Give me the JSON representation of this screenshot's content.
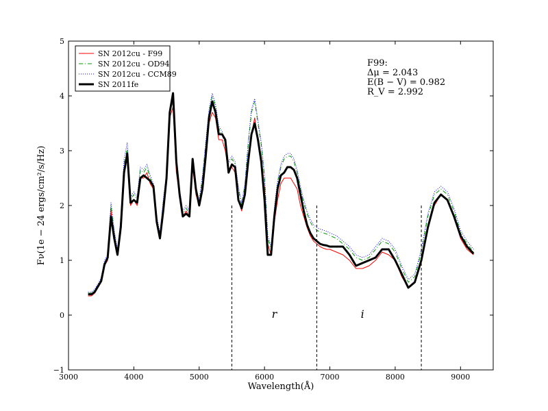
{
  "chart_data": {
    "type": "line",
    "xlabel": "Wavelength(Å)",
    "ylabel": "Fν(1e − 24 ergs/cm²/s/Hz)",
    "xlim": [
      3000,
      9500
    ],
    "ylim": [
      -1,
      5
    ],
    "x_ticks": [
      "3000",
      "4000",
      "5000",
      "6000",
      "7000",
      "8000",
      "9000"
    ],
    "y_ticks": [
      "−1",
      "0",
      "1",
      "2",
      "3",
      "4",
      "5"
    ],
    "grid": false,
    "legend_placement": "top-left",
    "annotation_lines": [
      "F99:",
      "Δμ = 2.043",
      "E(B − V) = 0.982",
      "R_V = 2.992"
    ],
    "band_lines_x": [
      5500,
      6800,
      8400
    ],
    "band_lines_ylim": [
      -1,
      2
    ],
    "band_labels": [
      {
        "text": "r",
        "x": 6150,
        "y": 0.0
      },
      {
        "text": "i",
        "x": 7500,
        "y": 0.0
      }
    ],
    "x": [
      3300,
      3350,
      3400,
      3450,
      3500,
      3550,
      3600,
      3650,
      3700,
      3750,
      3800,
      3850,
      3900,
      3950,
      4000,
      4050,
      4100,
      4150,
      4200,
      4250,
      4300,
      4350,
      4400,
      4450,
      4500,
      4550,
      4600,
      4650,
      4700,
      4750,
      4800,
      4850,
      4900,
      4950,
      5000,
      5050,
      5100,
      5150,
      5200,
      5250,
      5300,
      5350,
      5400,
      5450,
      5500,
      5550,
      5600,
      5650,
      5700,
      5750,
      5800,
      5850,
      5900,
      5950,
      6000,
      6050,
      6100,
      6150,
      6200,
      6250,
      6300,
      6350,
      6400,
      6450,
      6500,
      6550,
      6600,
      6650,
      6700,
      6750,
      6800,
      6850,
      6900,
      6950,
      7000,
      7100,
      7200,
      7300,
      7400,
      7500,
      7600,
      7700,
      7800,
      7900,
      8000,
      8100,
      8200,
      8300,
      8400,
      8500,
      8600,
      8700,
      8800,
      8900,
      9000,
      9100,
      9200
    ],
    "series": [
      {
        "name": "SN 2012cu - F99",
        "color": "#ff0000",
        "style": "solid",
        "width": 1,
        "values": [
          0.35,
          0.35,
          0.4,
          0.5,
          0.6,
          0.9,
          1.0,
          1.9,
          1.4,
          1.1,
          1.6,
          2.6,
          2.9,
          2.0,
          2.1,
          2.0,
          2.5,
          2.5,
          2.6,
          2.4,
          2.3,
          1.7,
          1.4,
          2.0,
          2.5,
          3.6,
          3.8,
          2.6,
          2.2,
          1.8,
          1.9,
          1.8,
          2.7,
          2.2,
          2.0,
          2.4,
          3.0,
          3.5,
          3.7,
          3.6,
          3.2,
          3.2,
          3.0,
          2.6,
          2.7,
          2.6,
          2.1,
          1.9,
          2.2,
          2.8,
          3.3,
          3.6,
          3.2,
          2.9,
          2.3,
          1.3,
          1.1,
          1.7,
          2.1,
          2.4,
          2.5,
          2.5,
          2.5,
          2.4,
          2.3,
          2.0,
          1.8,
          1.6,
          1.45,
          1.35,
          1.3,
          1.25,
          1.22,
          1.2,
          1.2,
          1.15,
          1.1,
          1.0,
          0.85,
          0.85,
          0.9,
          1.0,
          1.15,
          1.1,
          1.0,
          0.7,
          0.5,
          0.6,
          1.0,
          1.6,
          2.0,
          2.2,
          2.1,
          1.8,
          1.4,
          1.2,
          1.1
        ]
      },
      {
        "name": "SN 2012cu - OD94",
        "color": "#009900",
        "style": "dashdot",
        "width": 1,
        "values": [
          0.4,
          0.4,
          0.45,
          0.55,
          0.65,
          0.95,
          1.05,
          2.0,
          1.5,
          1.15,
          1.7,
          2.75,
          3.05,
          2.1,
          2.2,
          2.1,
          2.65,
          2.6,
          2.7,
          2.5,
          2.35,
          1.75,
          1.45,
          2.05,
          2.55,
          3.7,
          3.9,
          2.7,
          2.25,
          1.85,
          1.95,
          1.85,
          2.8,
          2.25,
          2.05,
          2.5,
          3.1,
          3.7,
          4.0,
          3.8,
          3.4,
          3.3,
          3.1,
          2.75,
          2.85,
          2.75,
          2.3,
          2.0,
          2.35,
          3.1,
          3.7,
          3.9,
          3.5,
          3.1,
          2.5,
          1.4,
          1.2,
          1.9,
          2.4,
          2.7,
          2.85,
          2.9,
          2.9,
          2.8,
          2.6,
          2.3,
          2.05,
          1.85,
          1.7,
          1.6,
          1.55,
          1.52,
          1.5,
          1.48,
          1.45,
          1.4,
          1.3,
          1.2,
          1.05,
          1.0,
          1.05,
          1.2,
          1.35,
          1.3,
          1.15,
          0.85,
          0.6,
          0.7,
          1.15,
          1.8,
          2.2,
          2.3,
          2.2,
          1.9,
          1.5,
          1.3,
          1.15
        ]
      },
      {
        "name": "SN 2012cu - CCM89",
        "color": "#0000ff",
        "style": "dotted",
        "width": 1,
        "values": [
          0.42,
          0.42,
          0.47,
          0.57,
          0.68,
          1.0,
          1.1,
          2.05,
          1.55,
          1.2,
          1.75,
          2.85,
          3.15,
          2.15,
          2.25,
          2.15,
          2.7,
          2.65,
          2.75,
          2.55,
          2.4,
          1.8,
          1.5,
          2.1,
          2.6,
          3.75,
          3.95,
          2.75,
          2.3,
          1.9,
          2.0,
          1.9,
          2.85,
          2.3,
          2.1,
          2.55,
          3.15,
          3.75,
          4.05,
          3.85,
          3.45,
          3.35,
          3.15,
          2.8,
          2.9,
          2.8,
          2.35,
          2.05,
          2.4,
          3.15,
          3.75,
          3.95,
          3.55,
          3.15,
          2.55,
          1.45,
          1.25,
          1.95,
          2.45,
          2.75,
          2.9,
          2.95,
          2.95,
          2.85,
          2.65,
          2.35,
          2.1,
          1.9,
          1.75,
          1.65,
          1.6,
          1.57,
          1.55,
          1.53,
          1.5,
          1.45,
          1.35,
          1.25,
          1.1,
          1.05,
          1.1,
          1.25,
          1.4,
          1.35,
          1.2,
          0.9,
          0.65,
          0.75,
          1.2,
          1.85,
          2.25,
          2.35,
          2.25,
          1.95,
          1.55,
          1.35,
          1.2
        ]
      },
      {
        "name": "SN 2011fe",
        "color": "#000000",
        "style": "solid",
        "width": 3,
        "values": [
          0.38,
          0.38,
          0.42,
          0.52,
          0.62,
          0.92,
          1.05,
          1.8,
          1.4,
          1.1,
          1.6,
          2.6,
          2.95,
          2.05,
          2.1,
          2.05,
          2.5,
          2.55,
          2.5,
          2.45,
          2.35,
          1.7,
          1.4,
          1.9,
          2.5,
          3.7,
          4.05,
          2.8,
          2.2,
          1.8,
          1.85,
          1.8,
          2.85,
          2.3,
          2.0,
          2.3,
          2.9,
          3.6,
          3.9,
          3.7,
          3.3,
          3.3,
          3.2,
          2.6,
          2.75,
          2.7,
          2.1,
          1.95,
          2.2,
          2.8,
          3.3,
          3.5,
          3.2,
          2.8,
          2.1,
          1.1,
          1.1,
          1.8,
          2.3,
          2.55,
          2.6,
          2.7,
          2.7,
          2.65,
          2.5,
          2.2,
          1.9,
          1.65,
          1.5,
          1.4,
          1.35,
          1.3,
          1.28,
          1.27,
          1.25,
          1.25,
          1.25,
          1.1,
          0.9,
          0.95,
          1.0,
          1.05,
          1.2,
          1.2,
          1.0,
          0.75,
          0.5,
          0.6,
          1.0,
          1.6,
          2.05,
          2.2,
          2.1,
          1.8,
          1.45,
          1.25,
          1.12
        ]
      }
    ]
  }
}
